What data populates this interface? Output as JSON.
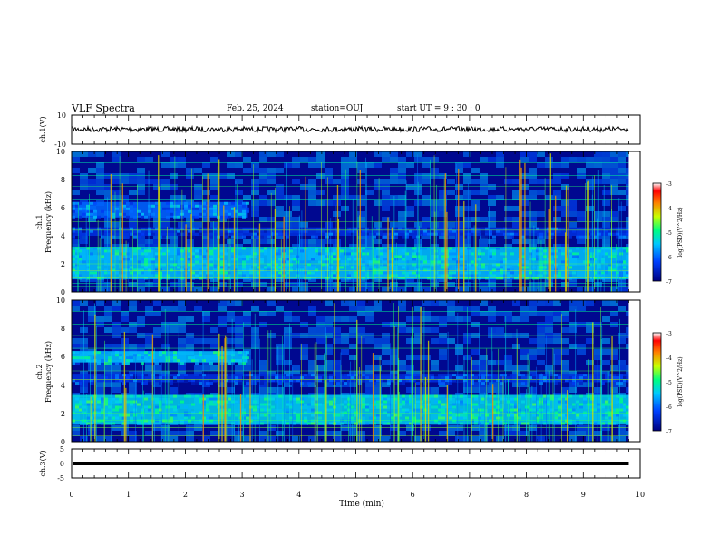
{
  "header": {
    "title": "VLF Spectra",
    "date": "Feb. 25, 2024",
    "station_label": "station=OUJ",
    "start_label": "start  UT =  9 : 30 : 0"
  },
  "chart_data": [
    {
      "type": "line",
      "id": "ch1-waveform",
      "ylabel": "ch.1(V)",
      "ylim": [
        -10,
        10
      ],
      "yticks": [
        "10",
        "-10"
      ],
      "xlim": [
        0,
        10
      ],
      "trace_level_v": 0.3,
      "trace_xmax_min": 9.8
    },
    {
      "type": "heatmap",
      "id": "ch1-spectrogram",
      "ylabel": "ch.1",
      "ylabel2": "Frequency (kHz)",
      "ylim": [
        0,
        10
      ],
      "yticks": [
        "0",
        "2",
        "4",
        "6",
        "8",
        "10"
      ],
      "xlim": [
        0,
        10
      ],
      "data_xmax_min": 9.8,
      "bands": [
        {
          "f0": 0.9,
          "f1": 3.2,
          "level": -5.5
        },
        {
          "f0": 5.3,
          "f1": 6.4,
          "level": -6.0,
          "until_min": 3.1
        },
        {
          "f0": 4.0,
          "f1": 4.6,
          "level": -6.4
        }
      ],
      "colorbar": {
        "label": "log(PSD)(V^2/Hz)",
        "ticks": [
          "-3",
          "-4",
          "-5",
          "-6",
          "-7"
        ],
        "range": [
          -7,
          -3
        ]
      }
    },
    {
      "type": "heatmap",
      "id": "ch2-spectrogram",
      "ylabel": "ch.2",
      "ylabel2": "Frequency (kHz)",
      "ylim": [
        0,
        10
      ],
      "yticks": [
        "0",
        "2",
        "4",
        "6",
        "8",
        "10"
      ],
      "xlim": [
        0,
        10
      ],
      "data_xmax_min": 9.8,
      "bands": [
        {
          "f0": 1.2,
          "f1": 3.3,
          "level": -5.4
        },
        {
          "f0": 5.6,
          "f1": 6.4,
          "level": -5.5,
          "until_min": 3.1
        },
        {
          "f0": 4.2,
          "f1": 4.8,
          "level": -6.4
        }
      ],
      "colorbar": {
        "label": "log(PSD)(V^2/Hz)",
        "ticks": [
          "-3",
          "-4",
          "-5",
          "-6",
          "-7"
        ],
        "range": [
          -7,
          -3
        ]
      }
    },
    {
      "type": "line",
      "id": "ch3-waveform",
      "ylabel": "ch.3(V)",
      "ylim": [
        -5,
        5
      ],
      "yticks": [
        "5",
        "0",
        "-5"
      ],
      "xlim": [
        0,
        10
      ],
      "trace_level_v": 0,
      "trace_xmax_min": 9.8,
      "xlabel": "Time (min)",
      "xticks": [
        "0",
        "1",
        "2",
        "3",
        "4",
        "5",
        "6",
        "7",
        "8",
        "9",
        "10"
      ]
    }
  ]
}
